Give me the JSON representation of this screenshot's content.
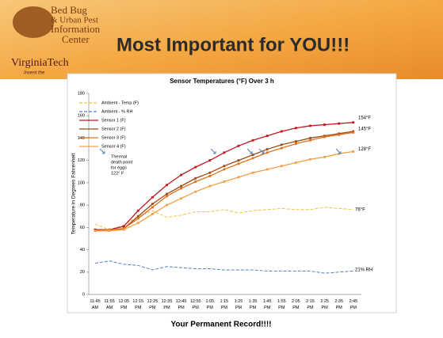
{
  "header": {
    "logo_lines": [
      "Bed Bug",
      "& Urban Pest",
      "Information",
      "Center"
    ],
    "university": "VirginiaTech",
    "motto": "Invent the",
    "title": "Most Important for YOU!!!"
  },
  "chart_data": {
    "type": "line",
    "title": "Sensor Temperatures (°F) Over 3 h",
    "y_label": "Temperature in Degrees Fahrenheit",
    "categories": [
      "11:45 AM",
      "11:55 AM",
      "12:05 PM",
      "12:15 PM",
      "12:25 PM",
      "12:35 PM",
      "12:45 PM",
      "12:55 PM",
      "1:05 PM",
      "1:15 PM",
      "1:25 PM",
      "1:35 PM",
      "1:45 PM",
      "1:55 PM",
      "2:05 PM",
      "2:15 PM",
      "2:25 PM",
      "2:35 PM",
      "2:45 PM"
    ],
    "ylim": [
      0,
      180
    ],
    "yticks": [
      0,
      20,
      40,
      60,
      80,
      100,
      120,
      140,
      160,
      180
    ],
    "series": [
      {
        "name": "Ambient - Temp (F)",
        "color": "#f5c040",
        "dashed": true,
        "markers": false,
        "values": [
          63,
          58,
          62,
          70,
          75,
          69,
          71,
          74,
          74,
          76,
          73,
          75,
          76,
          77,
          76,
          76,
          78,
          77,
          76
        ]
      },
      {
        "name": "Ambient - % RH",
        "color": "#4f81bd",
        "dashed": true,
        "markers": false,
        "values": [
          28,
          30,
          27,
          26,
          22,
          25,
          24,
          23,
          23,
          22,
          22,
          22,
          21,
          21,
          21,
          21,
          19,
          20,
          21
        ]
      },
      {
        "name": "Sensor 1 (F)",
        "color": "#c0161d",
        "dashed": false,
        "markers": true,
        "values": [
          58,
          58,
          61,
          75,
          87,
          98,
          107,
          114,
          120,
          127,
          133,
          138,
          142,
          146,
          149,
          151,
          152,
          153,
          154
        ]
      },
      {
        "name": "Sensor 2 (F)",
        "color": "#9b4a1a",
        "dashed": false,
        "markers": true,
        "values": [
          57,
          57,
          59,
          70,
          81,
          90,
          97,
          104,
          109,
          115,
          120,
          125,
          130,
          134,
          137,
          140,
          142,
          144,
          146
        ]
      },
      {
        "name": "Sensor 3 (F)",
        "color": "#e0701a",
        "dashed": false,
        "markers": true,
        "values": [
          57,
          58,
          59,
          68,
          78,
          88,
          95,
          101,
          106,
          112,
          117,
          122,
          127,
          131,
          135,
          138,
          141,
          143,
          145
        ]
      },
      {
        "name": "Sensor 4 (F)",
        "color": "#f0a04a",
        "dashed": false,
        "markers": true,
        "values": [
          57,
          57,
          58,
          64,
          72,
          80,
          86,
          92,
          97,
          101,
          105,
          109,
          112,
          115,
          118,
          121,
          123,
          126,
          128
        ]
      }
    ],
    "annotations": {
      "s1": "154°F",
      "s23": "145°F",
      "s4": "128°F",
      "amb": "76°F",
      "rh": "21% RH",
      "thermal": [
        "Thermal",
        "death point",
        "for eggs",
        "122° F"
      ]
    }
  },
  "footer": "Your Permanent Record!!!!"
}
